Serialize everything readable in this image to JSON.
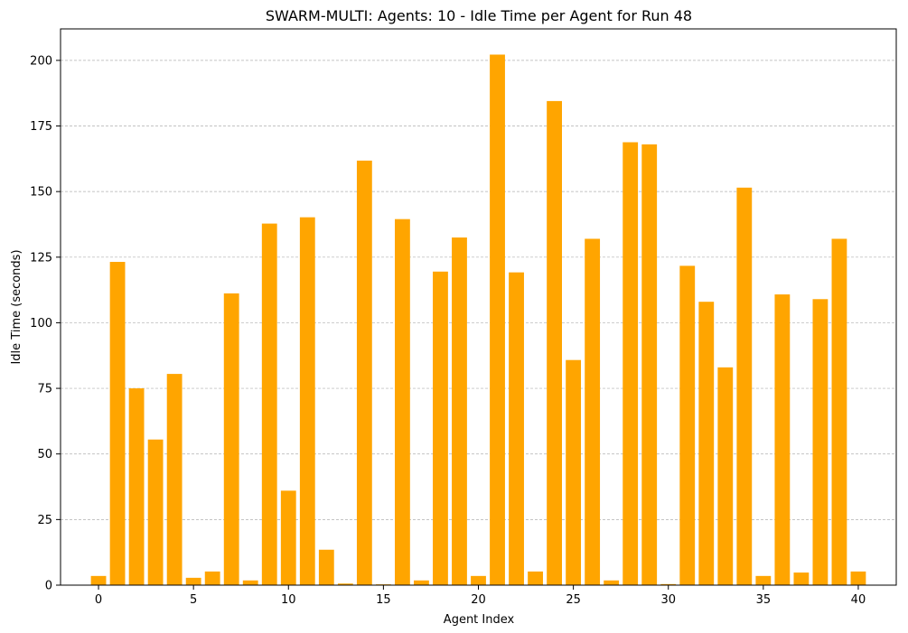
{
  "chart_data": {
    "type": "bar",
    "title": "SWARM-MULTI: Agents: 10 - Idle Time per Agent for Run 48",
    "xlabel": "Agent Index",
    "ylabel": "Idle Time (seconds)",
    "x": [
      0,
      1,
      2,
      3,
      4,
      5,
      6,
      7,
      8,
      9,
      10,
      11,
      12,
      13,
      14,
      15,
      16,
      17,
      18,
      19,
      20,
      21,
      22,
      23,
      24,
      25,
      26,
      27,
      28,
      29,
      30,
      31,
      32,
      33,
      34,
      35,
      36,
      37,
      38,
      39,
      40
    ],
    "values": [
      3.5,
      123.2,
      75.0,
      55.5,
      80.5,
      2.8,
      5.2,
      111.2,
      1.8,
      137.8,
      36.0,
      140.2,
      13.5,
      0.6,
      161.8,
      0.3,
      139.5,
      1.8,
      119.5,
      132.5,
      3.5,
      202.2,
      119.2,
      5.2,
      184.5,
      85.8,
      132.0,
      1.8,
      168.8,
      168.0,
      0.4,
      121.7,
      108.0,
      83.0,
      151.5,
      3.5,
      110.8,
      4.8,
      109.0,
      132.0,
      5.2
    ],
    "xlim": [
      -2.0,
      42.0
    ],
    "ylim": [
      0,
      212
    ],
    "xticks": [
      0,
      5,
      10,
      15,
      20,
      25,
      30,
      35,
      40
    ],
    "yticks": [
      0,
      25,
      50,
      75,
      100,
      125,
      150,
      175,
      200
    ],
    "grid": "y-dashed",
    "bar_color": "#ffa500",
    "grid_color": "#b0b0b0"
  }
}
